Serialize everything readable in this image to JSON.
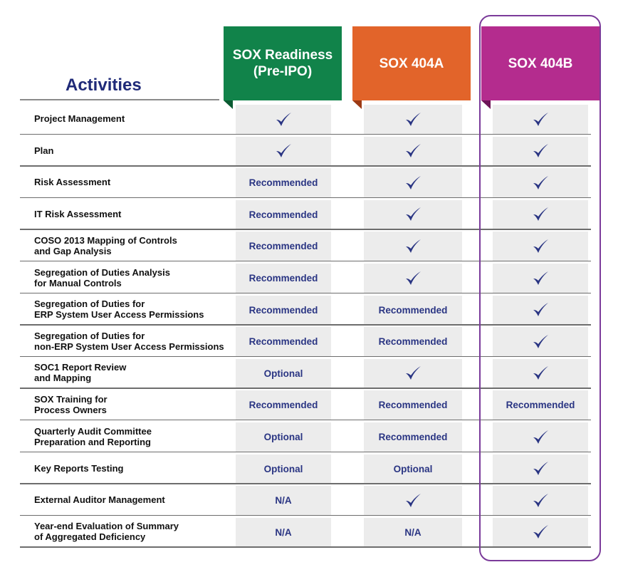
{
  "activities_title": "Activities",
  "columns": [
    {
      "label": "SOX Readiness\n(Pre-IPO)",
      "color": "#11834a",
      "fold_color": "#0a5a31"
    },
    {
      "label": "SOX 404A",
      "color": "#e2642a",
      "fold_color": "#9c3a14"
    },
    {
      "label": "SOX 404B",
      "color": "#b42c8e",
      "fold_color": "#6e1458"
    }
  ],
  "check_icon": "checkmark-icon",
  "rows": [
    {
      "activity": "Project Management",
      "values": [
        "check",
        "check",
        "check"
      ]
    },
    {
      "activity": "Plan",
      "values": [
        "check",
        "check",
        "check"
      ]
    },
    {
      "activity": "Risk Assessment",
      "values": [
        "Recommended",
        "check",
        "check"
      ]
    },
    {
      "activity": "IT Risk Assessment",
      "values": [
        "Recommended",
        "check",
        "check"
      ]
    },
    {
      "activity": "COSO 2013 Mapping of Controls\nand Gap Analysis",
      "values": [
        "Recommended",
        "check",
        "check"
      ]
    },
    {
      "activity": "Segregation of Duties Analysis\nfor Manual Controls",
      "values": [
        "Recommended",
        "check",
        "check"
      ]
    },
    {
      "activity": "Segregation of Duties for\nERP System User Access Permissions",
      "values": [
        "Recommended",
        "Recommended",
        "check"
      ]
    },
    {
      "activity": "Segregation of Duties for\nnon-ERP System User Access Permissions",
      "values": [
        "Recommended",
        "Recommended",
        "check"
      ]
    },
    {
      "activity": "SOC1 Report Review\nand Mapping",
      "values": [
        "Optional",
        "check",
        "check"
      ]
    },
    {
      "activity": "SOX Training for\nProcess Owners",
      "values": [
        "Recommended",
        "Recommended",
        "Recommended"
      ]
    },
    {
      "activity": "Quarterly Audit Committee\nPreparation and Reporting",
      "values": [
        "Optional",
        "Recommended",
        "check"
      ]
    },
    {
      "activity": "Key Reports Testing",
      "values": [
        "Optional",
        "Optional",
        "check"
      ]
    },
    {
      "activity": "External Auditor Management",
      "values": [
        "N/A",
        "check",
        "check"
      ]
    },
    {
      "activity": "Year-end Evaluation of Summary\nof Aggregated Deficiency",
      "values": [
        "N/A",
        "N/A",
        "check"
      ]
    }
  ],
  "accent_colors": {
    "title": "#1f2a78",
    "cell_text": "#2a3583",
    "highlight_border": "#7b3b9a"
  }
}
